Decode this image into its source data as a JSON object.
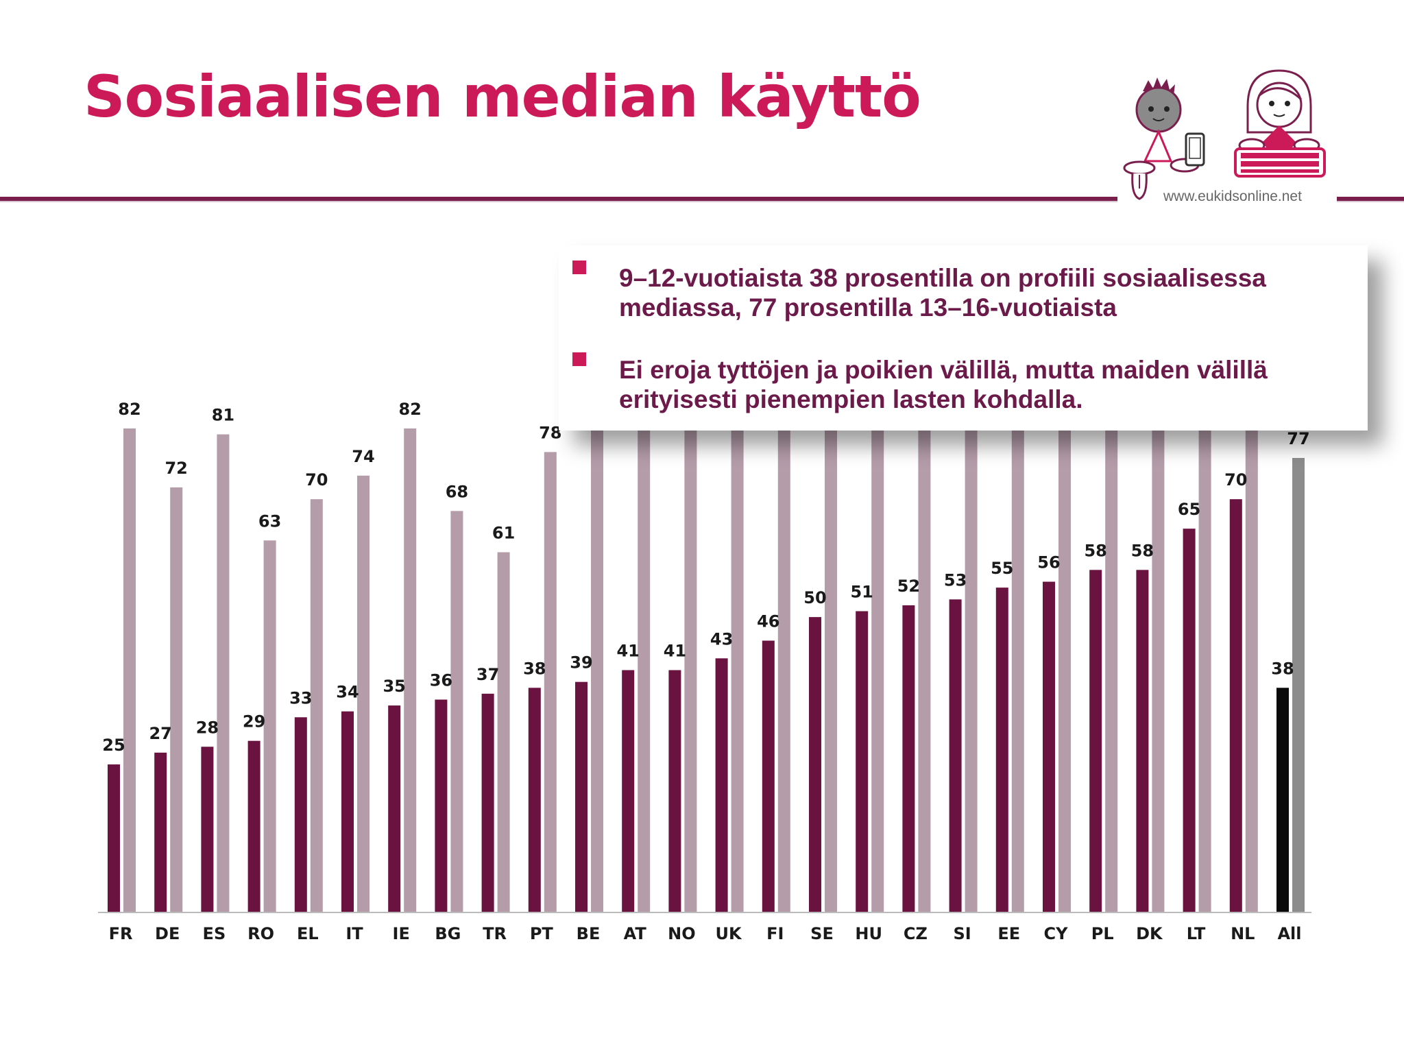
{
  "slide": {
    "title": "Sosiaalisen median käyttö",
    "logo_url": "www.eukidsonline.net"
  },
  "infobox": {
    "bullets": [
      "9–12-vuotiaista 38 prosentilla on profiili sosiaalisessa mediassa, 77 prosentilla 13–16-vuotiaista",
      "Ei eroja tyttöjen ja poikien välillä, mutta maiden välillä erityisesti pienempien lasten kohdalla."
    ]
  },
  "colors": {
    "title": "#cc1a58",
    "bullet": "#cc1a58",
    "bullet_text": "#6b1a4a",
    "younger_bar": "#6a1240",
    "older_bar": "#b49ca9",
    "all_younger_bar": "#0a0a0a",
    "all_older_bar": "#8c8c8c"
  },
  "chart_data": {
    "type": "bar",
    "categories": [
      "FR",
      "DE",
      "ES",
      "RO",
      "EL",
      "IT",
      "IE",
      "BG",
      "TR",
      "PT",
      "BE",
      "AT",
      "NO",
      "UK",
      "FI",
      "SE",
      "HU",
      "CZ",
      "SI",
      "EE",
      "CY",
      "PL",
      "DK",
      "LT",
      "NL",
      "All"
    ],
    "series": [
      {
        "values": [
          25,
          27,
          28,
          29,
          33,
          34,
          35,
          36,
          37,
          38,
          39,
          41,
          41,
          43,
          46,
          50,
          51,
          52,
          53,
          55,
          56,
          58,
          58,
          65,
          70,
          38
        ]
      },
      {
        "values": [
          82,
          72,
          81,
          63,
          70,
          74,
          82,
          68,
          61,
          78,
          null,
          null,
          null,
          null,
          null,
          null,
          null,
          null,
          null,
          null,
          null,
          null,
          null,
          null,
          null,
          77
        ]
      }
    ],
    "ylim": [
      0,
      82
    ],
    "grid": false,
    "legend": "none"
  }
}
